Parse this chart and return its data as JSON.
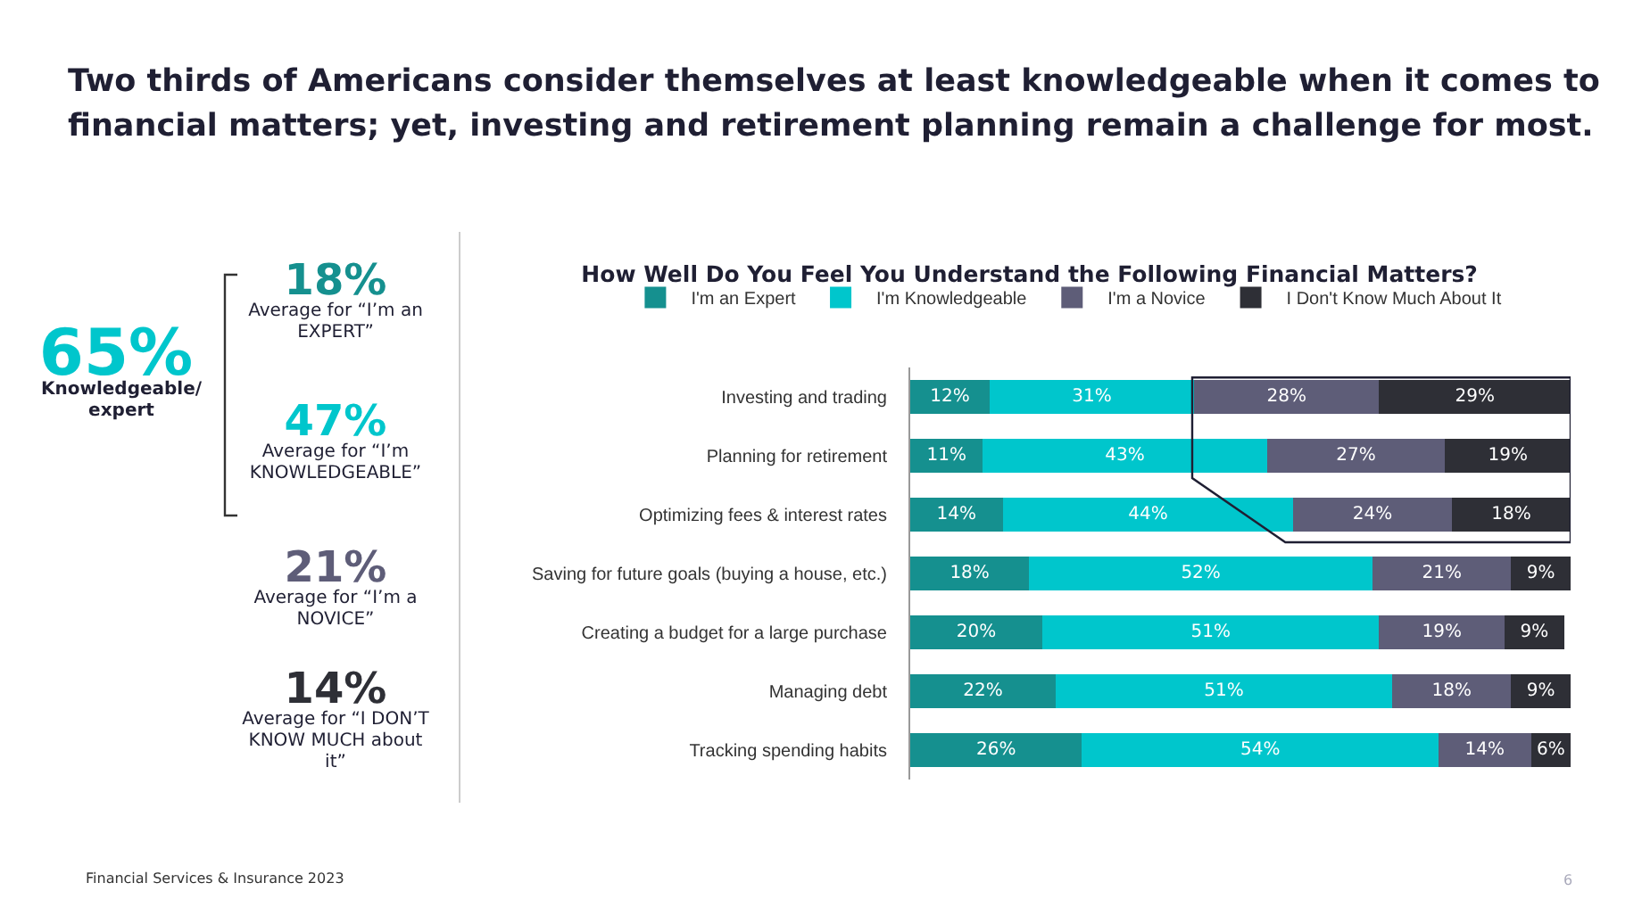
{
  "chart_data": [
    {
      "type": "other",
      "title": "Two thirds of Americans consider themselves at least knowledgeable when it comes to financial matters; yet, investing and retirement planning remain a challenge for most.",
      "annotations": [
        "65%",
        "Knowledgeable/ expert",
        "18%",
        "Average for “I’m an EXPERT”",
        "47%",
        "Average for “I’m KNOWLEDGEABLE”",
        "21%",
        "Average for “I’m a NOVICE”",
        "14%",
        "Average for “I DON’T KNOW MUCH about it”"
      ]
    },
    {
      "type": "bar",
      "orientation": "horizontal",
      "stacked": true,
      "title": "How Well Do You Feel You Understand the Following Financial Matters?",
      "categories": [
        "Investing and trading",
        "Planning for retirement",
        "Optimizing fees & interest rates",
        "Saving for future goals (buying a house, etc.)",
        "Creating a budget for a large purchase",
        "Managing debt",
        "Tracking spending habits"
      ],
      "series": [
        {
          "name": "I'm an Expert",
          "color": "#15908f",
          "values": [
            12,
            11,
            14,
            18,
            20,
            22,
            26
          ],
          "value_labels": [
            "12%",
            "11%",
            "14%",
            "18%",
            "20%",
            "22%",
            "26%"
          ]
        },
        {
          "name": "I'm Knowledgeable",
          "color": "#00c6cc",
          "values": [
            31,
            43,
            44,
            52,
            51,
            51,
            54
          ],
          "value_labels": [
            "31%",
            "43%",
            "44%",
            "52%",
            "51%",
            "51%",
            "54%"
          ]
        },
        {
          "name": "I'm a Novice",
          "color": "#5e5d78",
          "values": [
            28,
            27,
            24,
            21,
            19,
            18,
            14
          ],
          "value_labels": [
            "28%",
            "27%",
            "24%",
            "21%",
            "19%",
            "18%",
            "14%"
          ]
        },
        {
          "name": "I Don't Know Much About It",
          "color": "#2e2f36",
          "values": [
            29,
            19,
            18,
            9,
            9,
            9,
            6
          ],
          "value_labels": [
            "29%",
            "19%",
            "18%",
            "9%",
            "9%",
            "9%",
            "6%"
          ]
        }
      ],
      "tick_labels": "y",
      "legend": "top",
      "annotations": [
        "Financial Services & Insurance 2023",
        "6"
      ]
    }
  ]
}
